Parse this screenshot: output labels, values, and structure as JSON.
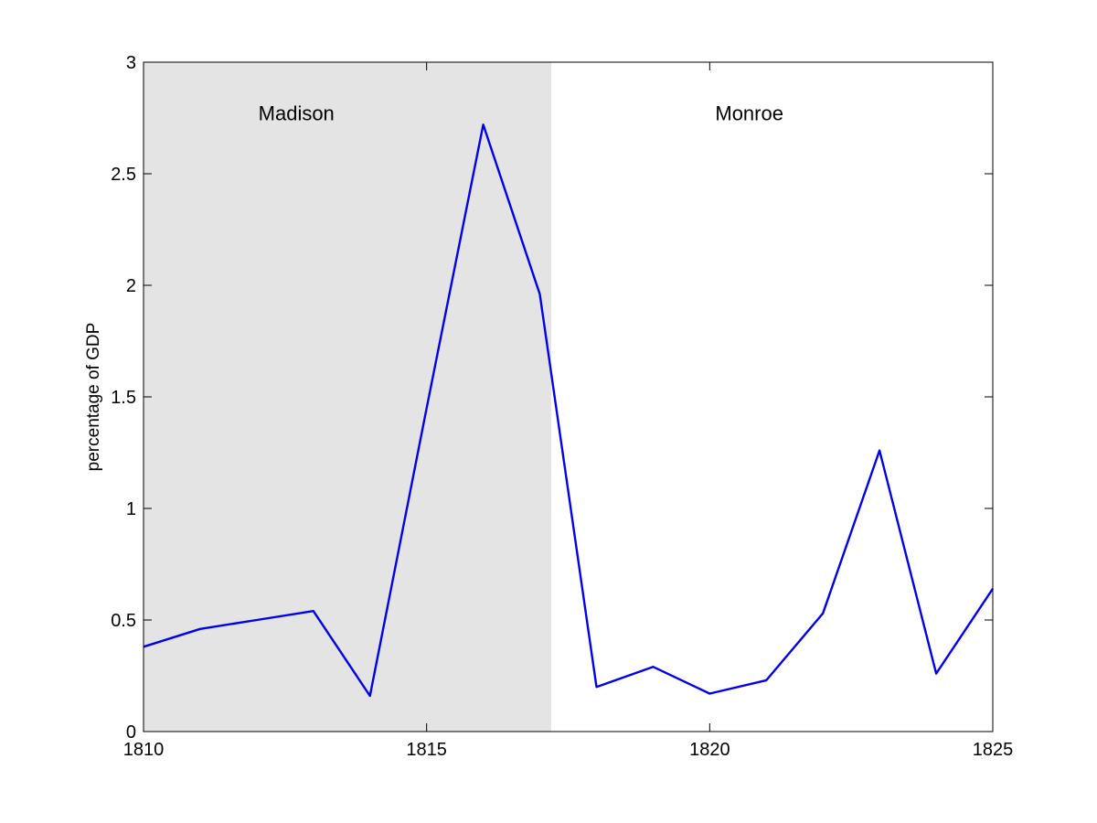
{
  "chart_data": {
    "type": "line",
    "title": "",
    "xlabel": "",
    "ylabel": "percentage of GDP",
    "xlim": [
      1810,
      1825
    ],
    "ylim": [
      0,
      3
    ],
    "grid": false,
    "x_ticks": [
      "1810",
      "1815",
      "1820",
      "1825"
    ],
    "y_ticks": [
      "0",
      "0.5",
      "1",
      "1.5",
      "2",
      "2.5",
      "3"
    ],
    "series": [
      {
        "color": "#0000ee",
        "x": [
          1810,
          1811,
          1812,
          1813,
          1814,
          1815,
          1816,
          1817,
          1818,
          1819,
          1820,
          1821,
          1822,
          1823,
          1824,
          1825
        ],
        "y": [
          0.38,
          0.46,
          0.5,
          0.54,
          0.16,
          1.45,
          2.72,
          1.96,
          0.2,
          0.29,
          0.17,
          0.23,
          0.53,
          1.26,
          0.26,
          0.64
        ]
      }
    ],
    "shaded_regions": [
      {
        "x_start": 1810,
        "x_end": 1817.2,
        "color": "#e4e4e4"
      }
    ],
    "annotations": [
      {
        "text": "Madison",
        "x": 1812.7,
        "y": 2.74
      },
      {
        "text": "Monroe",
        "x": 1820.7,
        "y": 2.74
      }
    ]
  }
}
